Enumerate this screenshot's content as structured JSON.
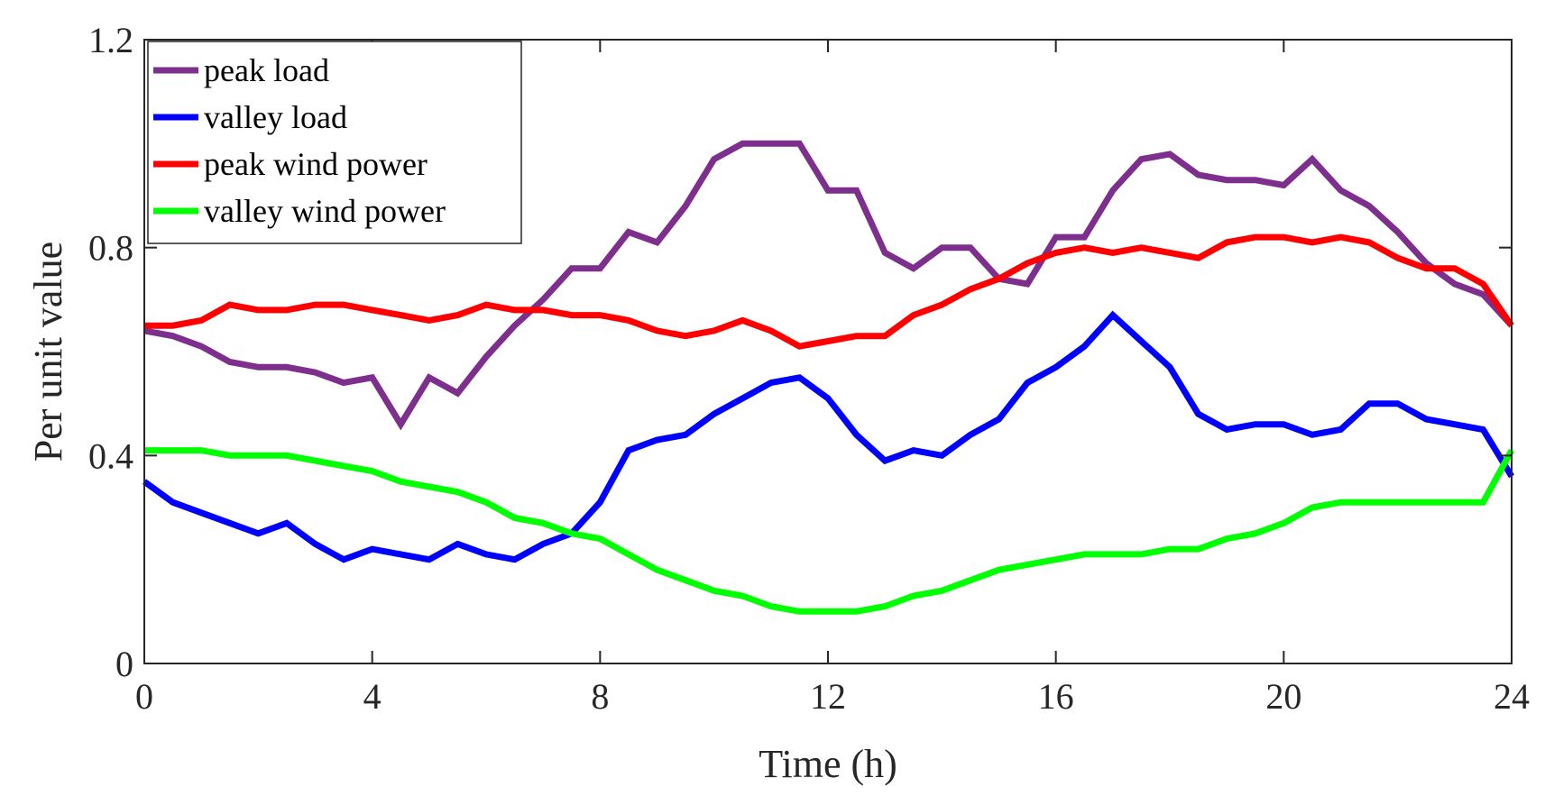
{
  "chart_data": {
    "type": "line",
    "title": "",
    "xlabel": "Time (h)",
    "ylabel": "Per unit value",
    "xlim": [
      0,
      24
    ],
    "ylim": [
      0,
      1.2
    ],
    "xticks": [
      "0",
      "4",
      "8",
      "12",
      "16",
      "20",
      "24"
    ],
    "yticks": [
      "0",
      "0.4",
      "0.8",
      "1.2"
    ],
    "grid": false,
    "legend_position": "top-left",
    "x": [
      0,
      0.5,
      1,
      1.5,
      2,
      2.5,
      3,
      3.5,
      4,
      4.5,
      5,
      5.5,
      6,
      6.5,
      7,
      7.5,
      8,
      8.5,
      9,
      9.5,
      10,
      10.5,
      11,
      11.5,
      12,
      12.5,
      13,
      13.5,
      14,
      14.5,
      15,
      15.5,
      16,
      16.5,
      17,
      17.5,
      18,
      18.5,
      19,
      19.5,
      20,
      20.5,
      21,
      21.5,
      22,
      22.5,
      23,
      23.5,
      24
    ],
    "series": [
      {
        "name": "peak load",
        "color": "#7E2F8E",
        "values": [
          0.64,
          0.63,
          0.61,
          0.58,
          0.57,
          0.57,
          0.56,
          0.54,
          0.55,
          0.46,
          0.55,
          0.52,
          0.59,
          0.65,
          0.7,
          0.76,
          0.76,
          0.83,
          0.81,
          0.88,
          0.97,
          1.0,
          1.0,
          1.0,
          0.91,
          0.91,
          0.79,
          0.76,
          0.8,
          0.8,
          0.74,
          0.73,
          0.82,
          0.82,
          0.91,
          0.97,
          0.98,
          0.94,
          0.93,
          0.93,
          0.92,
          0.97,
          0.91,
          0.88,
          0.83,
          0.77,
          0.73,
          0.71,
          0.65
        ]
      },
      {
        "name": "valley load",
        "color": "#0000FF",
        "values": [
          0.35,
          0.31,
          0.29,
          0.27,
          0.25,
          0.27,
          0.23,
          0.2,
          0.22,
          0.21,
          0.2,
          0.23,
          0.21,
          0.2,
          0.23,
          0.25,
          0.31,
          0.41,
          0.43,
          0.44,
          0.48,
          0.51,
          0.54,
          0.55,
          0.51,
          0.44,
          0.39,
          0.41,
          0.4,
          0.44,
          0.47,
          0.54,
          0.57,
          0.61,
          0.67,
          0.62,
          0.57,
          0.48,
          0.45,
          0.46,
          0.46,
          0.44,
          0.45,
          0.5,
          0.5,
          0.47,
          0.46,
          0.45,
          0.36
        ]
      },
      {
        "name": "peak wind power",
        "color": "#FF0000",
        "values": [
          0.65,
          0.65,
          0.66,
          0.69,
          0.68,
          0.68,
          0.69,
          0.69,
          0.68,
          0.67,
          0.66,
          0.67,
          0.69,
          0.68,
          0.68,
          0.67,
          0.67,
          0.66,
          0.64,
          0.63,
          0.64,
          0.66,
          0.64,
          0.61,
          0.62,
          0.63,
          0.63,
          0.67,
          0.69,
          0.72,
          0.74,
          0.77,
          0.79,
          0.8,
          0.79,
          0.8,
          0.79,
          0.78,
          0.81,
          0.82,
          0.82,
          0.81,
          0.82,
          0.81,
          0.78,
          0.76,
          0.76,
          0.73,
          0.65
        ]
      },
      {
        "name": "valley wind power",
        "color": "#00FF00",
        "values": [
          0.41,
          0.41,
          0.41,
          0.4,
          0.4,
          0.4,
          0.39,
          0.38,
          0.37,
          0.35,
          0.34,
          0.33,
          0.31,
          0.28,
          0.27,
          0.25,
          0.24,
          0.21,
          0.18,
          0.16,
          0.14,
          0.13,
          0.11,
          0.1,
          0.1,
          0.1,
          0.11,
          0.13,
          0.14,
          0.16,
          0.18,
          0.19,
          0.2,
          0.21,
          0.21,
          0.21,
          0.22,
          0.22,
          0.24,
          0.25,
          0.27,
          0.3,
          0.31,
          0.31,
          0.31,
          0.31,
          0.31,
          0.31,
          0.41
        ]
      }
    ]
  }
}
